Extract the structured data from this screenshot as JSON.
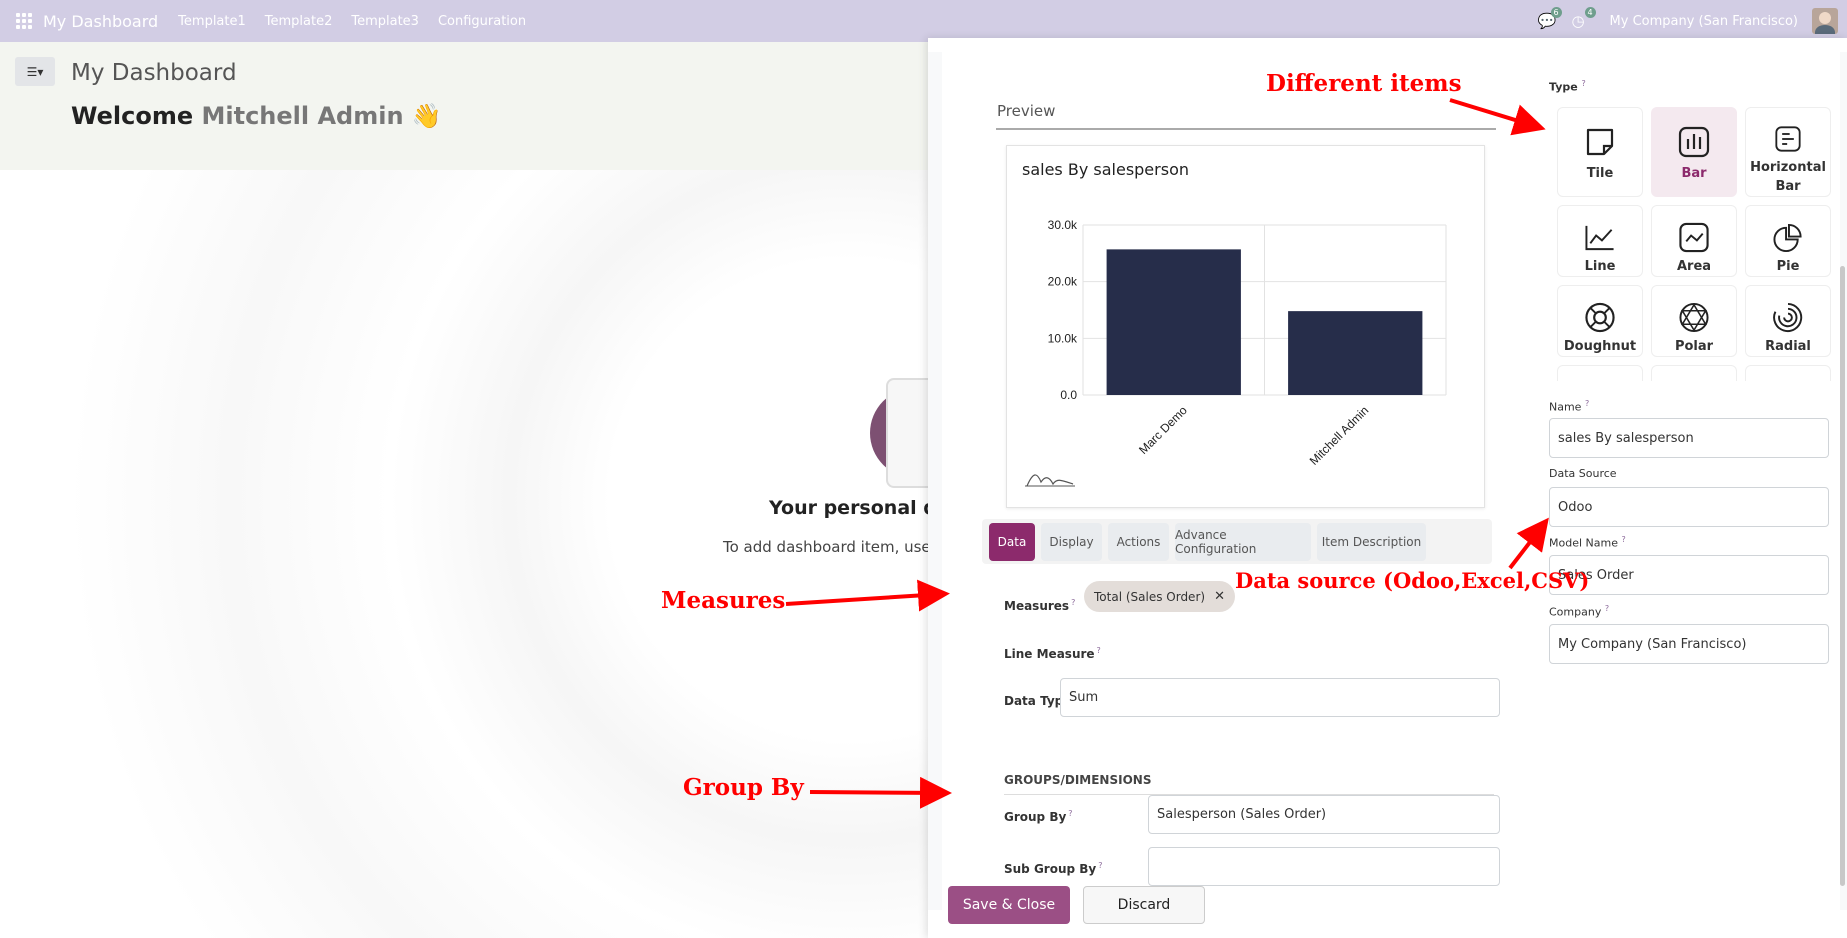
{
  "navbar": {
    "brand": "My Dashboard",
    "menu": [
      "Template1",
      "Template2",
      "Template3",
      "Configuration"
    ],
    "messages_count": "6",
    "activities_count": "4",
    "company": "My Company (San Francisco)"
  },
  "dashboard": {
    "title": "My Dashboard",
    "welcome_prefix": "Welcome",
    "welcome_user": "Mitchell Admin",
    "welcome_emoji": "👋",
    "empty_title": "Your personal das",
    "empty_sub_prefix": "To add dashboard item, use",
    "empty_sub_bold": "Ac"
  },
  "dialog": {
    "preview_tab": "Preview",
    "tabs": [
      "Data",
      "Display",
      "Actions",
      "Advance Configuration",
      "Item Description"
    ],
    "active_tab": "Data",
    "fields": {
      "measures_label": "Measures",
      "measures_tag": "Total (Sales Order)",
      "line_measure_label": "Line Measure",
      "data_type_label": "Data Type",
      "data_type_value": "Sum",
      "groups_title": "GROUPS/DIMENSIONS",
      "group_by_label": "Group By",
      "group_by_value": "Salesperson (Sales Order)",
      "sub_group_by_label": "Sub Group By",
      "sub_group_by_value": ""
    },
    "type_label": "Type",
    "types": [
      {
        "label": "Tile",
        "icon": "tile-icon",
        "selected": false
      },
      {
        "label": "Bar",
        "icon": "bar-icon",
        "selected": true
      },
      {
        "label": "Horizontal Bar",
        "icon": "horizontal-bar-icon",
        "selected": false
      },
      {
        "label": "Line",
        "icon": "line-icon",
        "selected": false
      },
      {
        "label": "Area",
        "icon": "area-icon",
        "selected": false
      },
      {
        "label": "Pie",
        "icon": "pie-icon",
        "selected": false
      },
      {
        "label": "Doughnut",
        "icon": "doughnut-icon",
        "selected": false
      },
      {
        "label": "Polar",
        "icon": "polar-icon",
        "selected": false
      },
      {
        "label": "Radial",
        "icon": "radial-icon",
        "selected": false
      }
    ],
    "name_label": "Name",
    "name_value": "sales By salesperson",
    "data_source_label": "Data Source",
    "data_source_value": "Odoo",
    "model_label": "Model Name",
    "model_value": "Sales Order",
    "company_label": "Company",
    "company_value": "My Company (San Francisco)",
    "save_label": "Save & Close",
    "discard_label": "Discard"
  },
  "chart_data": {
    "type": "bar",
    "title": "sales By salesperson",
    "categories": [
      "Marc Demo",
      "Mitchell Admin"
    ],
    "values": [
      25700,
      14800
    ],
    "ylim": [
      0,
      30000
    ],
    "yticks": [
      "0.0",
      "10.0k",
      "20.0k",
      "30.0k"
    ],
    "bar_color": "#262d4a",
    "grid": true
  },
  "annotations": {
    "different_items": "Different items",
    "measures": "Measures",
    "data_source": "Data source (Odoo,Excel,CSV)",
    "group_by": "Group By"
  }
}
